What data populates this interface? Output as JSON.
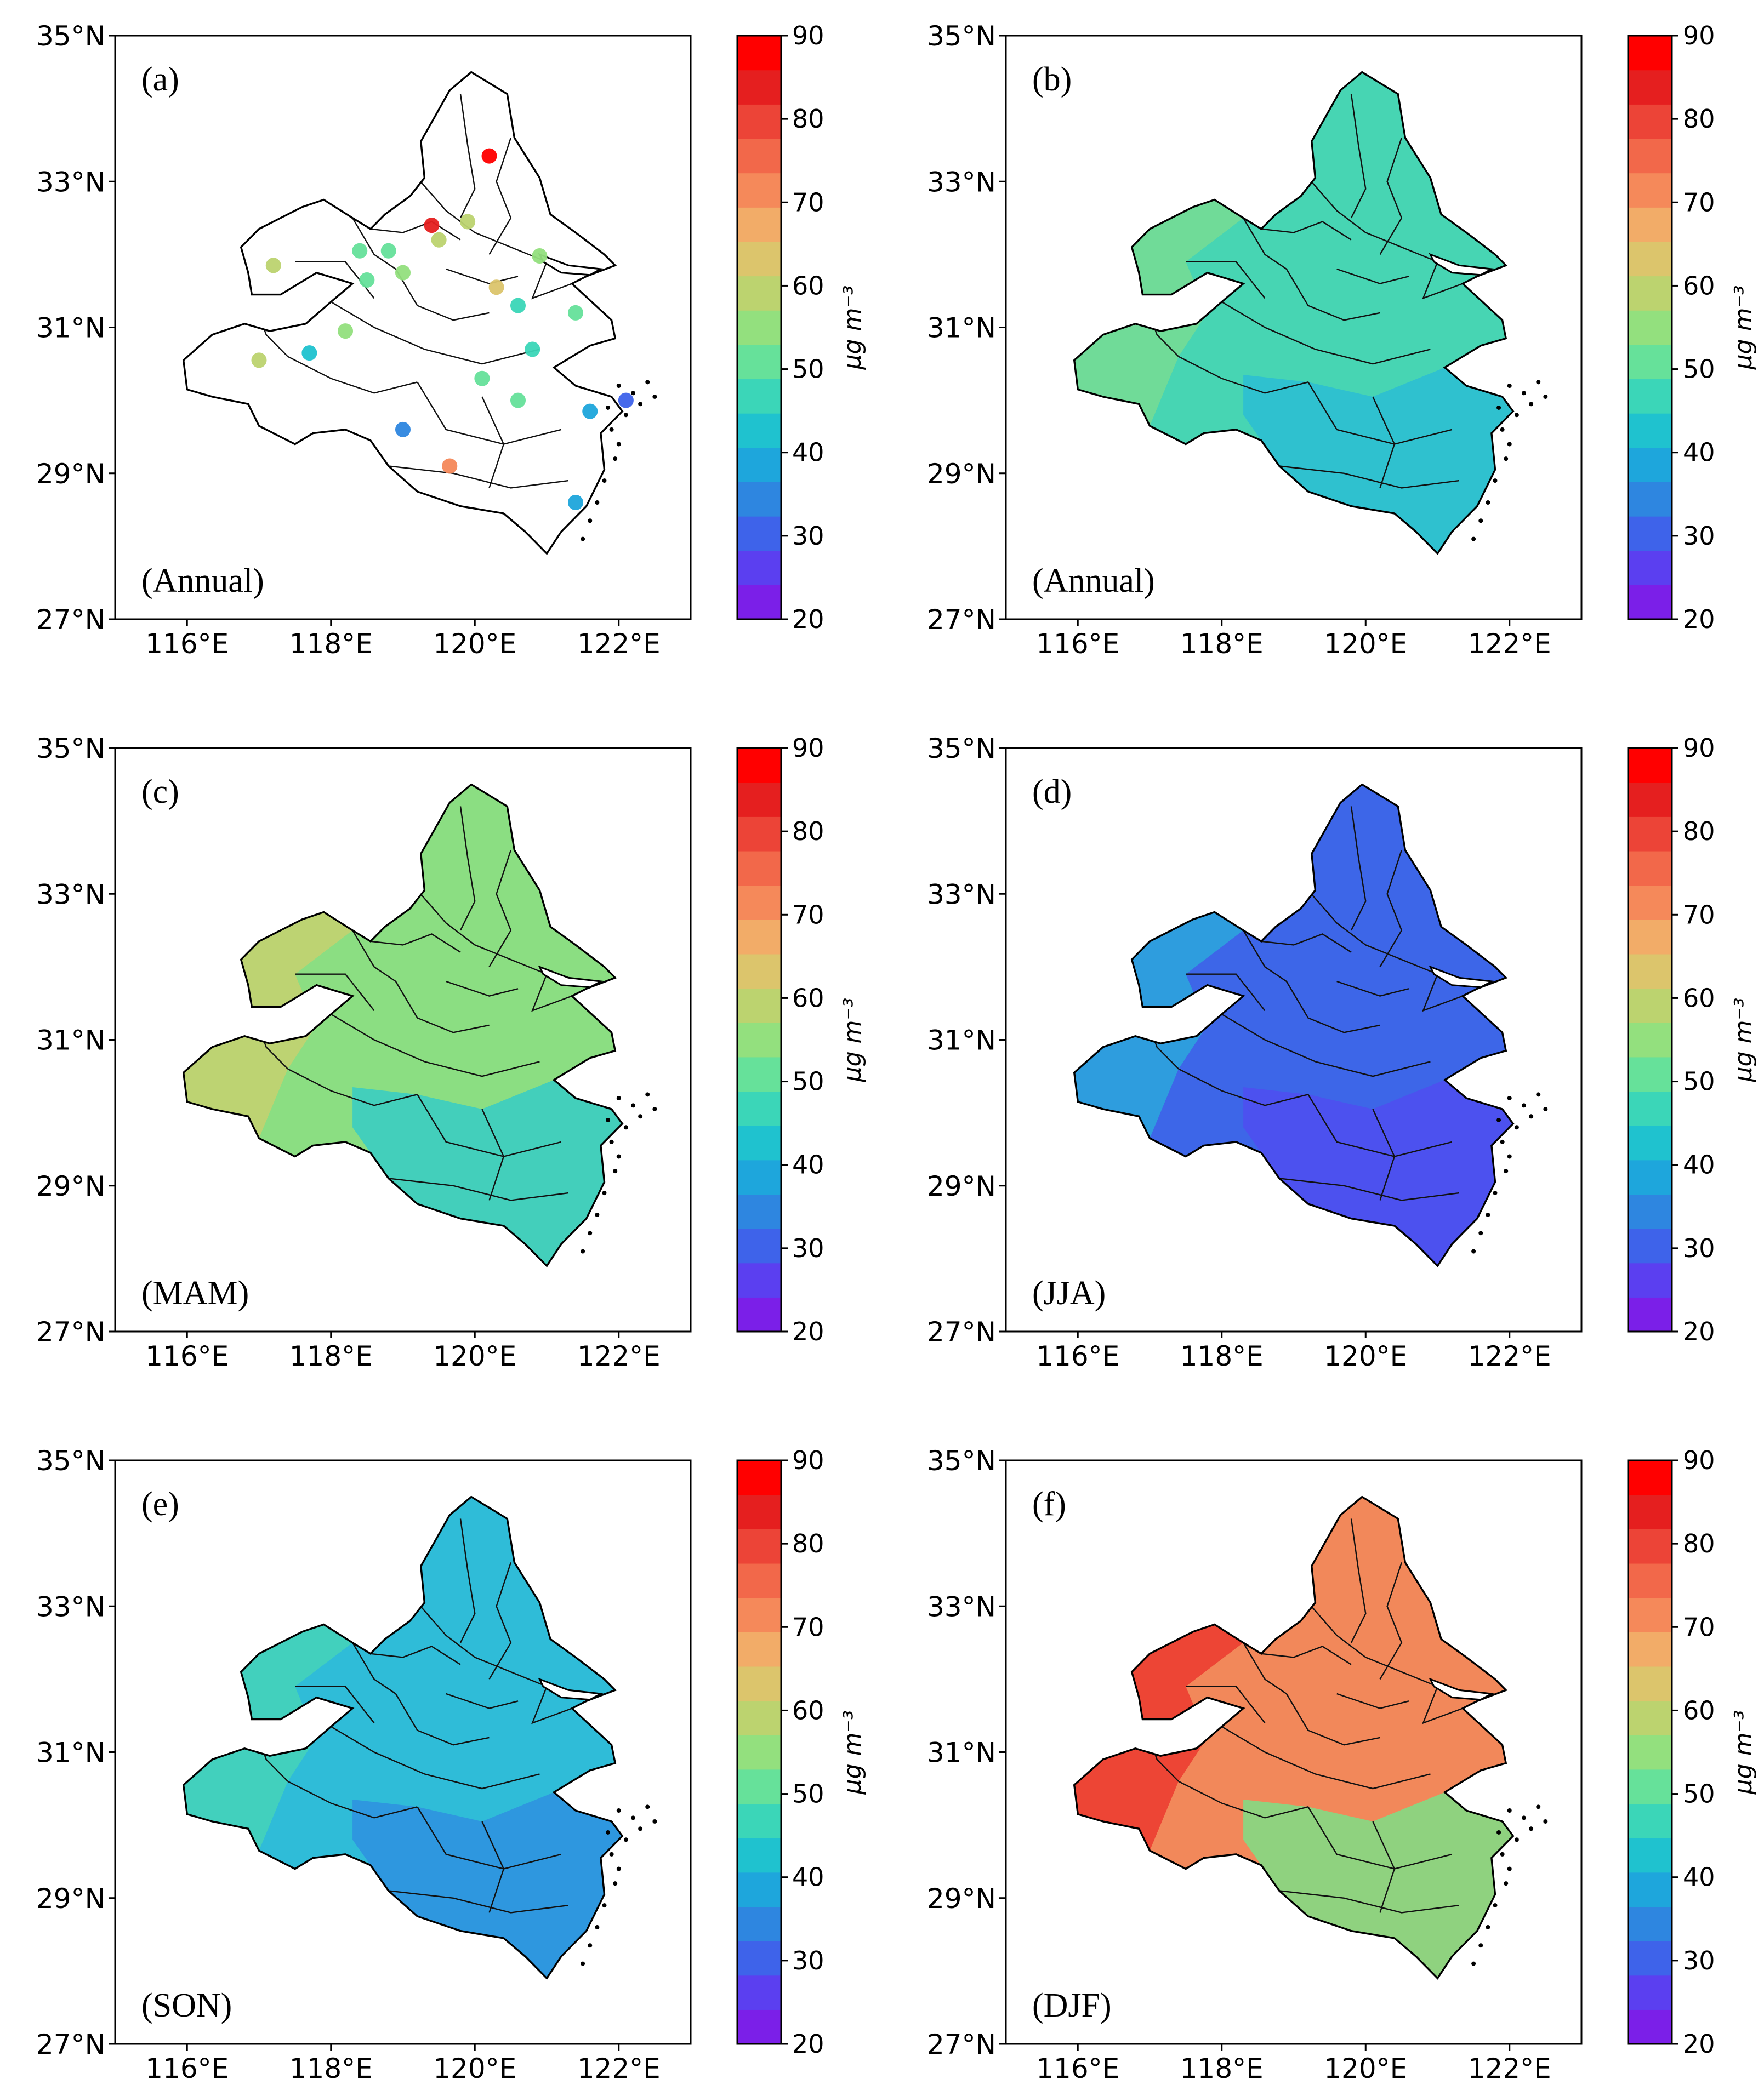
{
  "colorbar": {
    "ticks": [
      "20",
      "30",
      "40",
      "50",
      "60",
      "70",
      "80",
      "90"
    ],
    "unit": "μg m⁻³",
    "colors": [
      "#7b1fe8",
      "#5b3ff0",
      "#3e63ea",
      "#2e86e0",
      "#1ea6dc",
      "#1fc2cf",
      "#3bd6b8",
      "#66e19a",
      "#93e07e",
      "#bcd36f",
      "#dcc56c",
      "#f2ac68",
      "#f5895a",
      "#f2684a",
      "#ec4437",
      "#e51f1f",
      "#ff0000"
    ]
  },
  "axes": {
    "lat_labels": [
      "35°N",
      "33°N",
      "31°N",
      "29°N",
      "27°N"
    ],
    "lon_labels": [
      "116°E",
      "118°E",
      "120°E",
      "122°E"
    ]
  },
  "panels": [
    {
      "tag": "(a)",
      "season": "(Annual)",
      "fill": "none",
      "type": "stations"
    },
    {
      "tag": "(b)",
      "season": "(Annual)",
      "fill": "#47d5b3",
      "south_fill": "#2bbdd3",
      "west_fill": "#78dc93"
    },
    {
      "tag": "(c)",
      "season": "(MAM)",
      "fill": "#8bde82",
      "south_fill": "#36ccc6",
      "west_fill": "#c6d170"
    },
    {
      "tag": "(d)",
      "season": "(JJA)",
      "fill": "#3d66e8",
      "south_fill": "#4f4ef0",
      "west_fill": "#2ba7dc"
    },
    {
      "tag": "(e)",
      "season": "(SON)",
      "fill": "#2fbcd8",
      "south_fill": "#2e91e0",
      "west_fill": "#45d4b9"
    },
    {
      "tag": "(f)",
      "season": "(DJF)",
      "fill": "#f2885a",
      "south_fill": "#7edf86",
      "west_fill": "#ec3a2f"
    }
  ],
  "stations": [
    {
      "lon": 120.2,
      "lat": 33.35,
      "value": 88
    },
    {
      "lon": 119.4,
      "lat": 32.4,
      "value": 85
    },
    {
      "lon": 117.2,
      "lat": 31.85,
      "value": 60
    },
    {
      "lon": 118.4,
      "lat": 32.05,
      "value": 52
    },
    {
      "lon": 118.8,
      "lat": 32.05,
      "value": 50
    },
    {
      "lon": 119.5,
      "lat": 32.2,
      "value": 58
    },
    {
      "lon": 119.9,
      "lat": 32.45,
      "value": 60
    },
    {
      "lon": 120.9,
      "lat": 31.98,
      "value": 55
    },
    {
      "lon": 118.5,
      "lat": 31.65,
      "value": 50
    },
    {
      "lon": 119.0,
      "lat": 31.75,
      "value": 56
    },
    {
      "lon": 120.3,
      "lat": 31.55,
      "value": 62
    },
    {
      "lon": 120.6,
      "lat": 31.3,
      "value": 48
    },
    {
      "lon": 121.4,
      "lat": 31.2,
      "value": 50
    },
    {
      "lon": 117.0,
      "lat": 30.55,
      "value": 58
    },
    {
      "lon": 117.7,
      "lat": 30.65,
      "value": 42
    },
    {
      "lon": 118.2,
      "lat": 30.95,
      "value": 55
    },
    {
      "lon": 120.1,
      "lat": 30.3,
      "value": 52
    },
    {
      "lon": 120.8,
      "lat": 30.7,
      "value": 47
    },
    {
      "lon": 120.6,
      "lat": 30.0,
      "value": 49
    },
    {
      "lon": 121.6,
      "lat": 29.85,
      "value": 40
    },
    {
      "lon": 122.1,
      "lat": 30.0,
      "value": 30
    },
    {
      "lon": 119.0,
      "lat": 29.6,
      "value": 36
    },
    {
      "lon": 119.65,
      "lat": 29.1,
      "value": 72
    },
    {
      "lon": 121.4,
      "lat": 28.6,
      "value": 38
    }
  ]
}
